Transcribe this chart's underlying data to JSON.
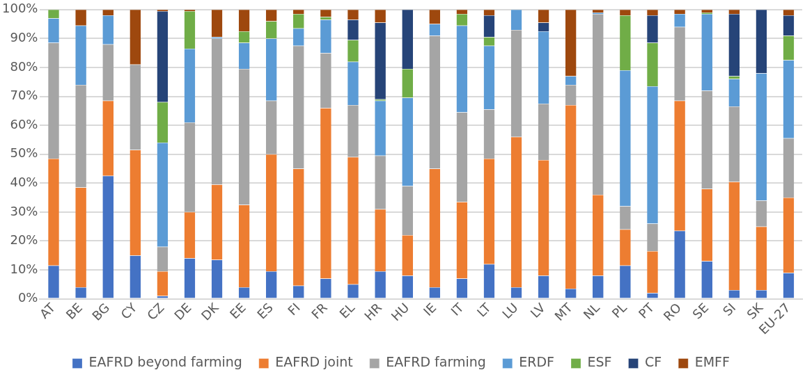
{
  "chart_data": {
    "type": "bar",
    "stacked": true,
    "categories": [
      "AT",
      "BE",
      "BG",
      "CY",
      "CZ",
      "DE",
      "DK",
      "EE",
      "ES",
      "FI",
      "FR",
      "EL",
      "HR",
      "HU",
      "IE",
      "IT",
      "LT",
      "LU",
      "LV",
      "MT",
      "NL",
      "PL",
      "PT",
      "RO",
      "SE",
      "SI",
      "SK",
      "EU-27"
    ],
    "series": [
      {
        "name": "EAFRD beyond farming",
        "color": "#4472c4",
        "values": [
          11.5,
          4,
          42.5,
          15,
          1,
          14,
          13.5,
          4,
          9.5,
          4.5,
          7,
          5,
          9.5,
          8,
          4,
          7,
          12,
          4,
          8,
          3.5,
          8,
          11.5,
          2,
          23.5,
          13,
          3,
          3,
          9
        ]
      },
      {
        "name": "EAFRD joint",
        "color": "#ed7d31",
        "values": [
          37,
          34.5,
          26,
          36.5,
          8.5,
          16,
          26,
          28.5,
          40.5,
          40.5,
          59,
          44,
          21.5,
          14,
          41,
          26.5,
          36.5,
          52,
          40,
          63.5,
          28,
          12.5,
          14.5,
          45,
          25,
          37.5,
          22,
          26
        ]
      },
      {
        "name": "EAFRD farming",
        "color": "#a5a5a5",
        "values": [
          40,
          35.5,
          19.5,
          29.5,
          8.5,
          31,
          50.5,
          47,
          18.5,
          42.5,
          19,
          18,
          18.5,
          17,
          46,
          31,
          17,
          37,
          19.5,
          7,
          62.5,
          8,
          9.5,
          25.5,
          34,
          26,
          9,
          20.5
        ]
      },
      {
        "name": "ERDF",
        "color": "#5b9bd5",
        "values": [
          8.5,
          20.5,
          10,
          0,
          36,
          25.5,
          0.5,
          9,
          21.5,
          6,
          11.5,
          15,
          19,
          30.5,
          4,
          30,
          22,
          7,
          25,
          3,
          0.5,
          47,
          47.5,
          4.5,
          26.5,
          9.5,
          44,
          27
        ]
      },
      {
        "name": "ESF",
        "color": "#70ad47",
        "values": [
          3,
          0,
          0,
          0,
          14,
          13,
          0,
          4,
          6,
          5,
          1,
          7.5,
          0.5,
          10,
          0,
          4,
          3,
          0,
          0,
          0,
          0,
          19,
          15,
          0,
          0.5,
          1,
          0,
          8.5
        ]
      },
      {
        "name": "CF",
        "color": "#264478",
        "values": [
          0,
          0,
          0,
          0,
          31.5,
          0,
          0,
          0,
          0,
          0,
          0,
          7,
          26.5,
          20.5,
          0,
          0,
          7.5,
          0,
          3,
          0,
          0,
          0,
          9.5,
          0,
          0,
          21.5,
          22,
          7
        ]
      },
      {
        "name": "EMFF",
        "color": "#9e480e",
        "values": [
          0,
          5.5,
          2,
          19,
          0.5,
          0.5,
          9.5,
          7.5,
          4,
          1.5,
          2.5,
          3.5,
          4.5,
          0,
          5,
          1.5,
          2,
          0,
          4.5,
          23,
          1,
          2,
          2,
          1.5,
          1,
          1.5,
          0,
          2
        ]
      }
    ],
    "ylim": [
      0,
      100
    ],
    "yticks": [
      {
        "value": 0,
        "label": "0%"
      },
      {
        "value": 10,
        "label": "10%"
      },
      {
        "value": 20,
        "label": "20%"
      },
      {
        "value": 30,
        "label": "30%"
      },
      {
        "value": 40,
        "label": "40%"
      },
      {
        "value": 50,
        "label": "50%"
      },
      {
        "value": 60,
        "label": "60%"
      },
      {
        "value": 70,
        "label": "70%"
      },
      {
        "value": 80,
        "label": "80%"
      },
      {
        "value": 90,
        "label": "90%"
      },
      {
        "value": 100,
        "label": "100%"
      }
    ],
    "grid": "y",
    "legend": "bottom"
  }
}
